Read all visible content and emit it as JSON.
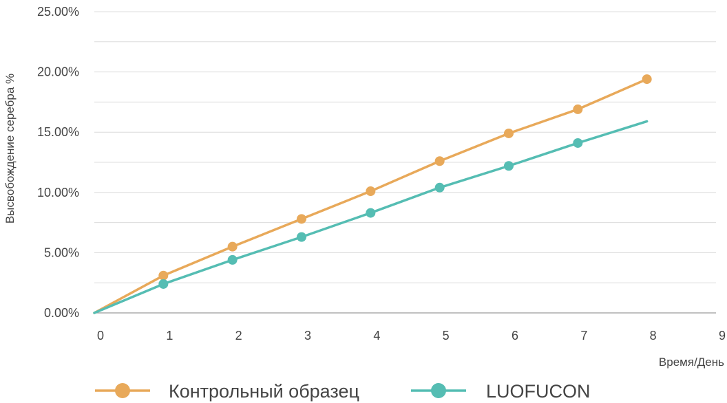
{
  "chart_data": {
    "type": "line",
    "title": "",
    "xlabel": "Время/День",
    "ylabel": "Высвобождение серебра %",
    "xlim": [
      0,
      9
    ],
    "ylim": [
      0,
      25
    ],
    "x_ticks": [
      0,
      1,
      2,
      3,
      4,
      5,
      6,
      7,
      8,
      9
    ],
    "y_ticks": [
      {
        "value": 0,
        "label": "0.00%"
      },
      {
        "value": 5,
        "label": "5.00%"
      },
      {
        "value": 10,
        "label": "10.00%"
      },
      {
        "value": 15,
        "label": "15.00%"
      },
      {
        "value": 20,
        "label": "20.00%"
      },
      {
        "value": 25,
        "label": "25.00%"
      }
    ],
    "grid": "horizontal",
    "legend_position": "bottom-left",
    "series": [
      {
        "name": "Контрольный образец",
        "color": "#E8A95A",
        "x": [
          0,
          1,
          2,
          3,
          4,
          5,
          6,
          7,
          8
        ],
        "y": [
          0,
          3.1,
          5.5,
          7.8,
          10.1,
          12.6,
          14.9,
          16.9,
          19.4
        ],
        "markers": [
          false,
          true,
          true,
          true,
          true,
          true,
          true,
          true,
          true
        ]
      },
      {
        "name": "LUOFUCON",
        "color": "#55BDB3",
        "x": [
          0,
          1,
          2,
          3,
          4,
          5,
          6,
          7,
          8
        ],
        "y": [
          0,
          2.4,
          4.4,
          6.3,
          8.3,
          10.4,
          12.2,
          14.1,
          15.9
        ],
        "markers": [
          false,
          true,
          true,
          true,
          true,
          true,
          true,
          true,
          false
        ]
      }
    ]
  }
}
